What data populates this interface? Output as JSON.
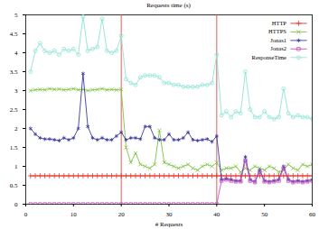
{
  "chart_data": {
    "type": "line",
    "title": "Requests time (s)",
    "x_label": "# Requests",
    "x": [
      1,
      2,
      3,
      4,
      5,
      6,
      7,
      8,
      9,
      10,
      11,
      12,
      13,
      14,
      15,
      16,
      17,
      18,
      19,
      20,
      21,
      22,
      23,
      24,
      25,
      26,
      27,
      28,
      29,
      30,
      31,
      32,
      33,
      34,
      35,
      36,
      37,
      38,
      39,
      40,
      41,
      42,
      43,
      44,
      45,
      46,
      47,
      48,
      49,
      50,
      51,
      52,
      53,
      54,
      55,
      56,
      57,
      58,
      59,
      60
    ],
    "series": [
      {
        "name": "HTTP",
        "color": "#e8312a",
        "marker": "plus",
        "values": [
          0.75,
          0.75,
          0.75,
          0.75,
          0.75,
          0.75,
          0.75,
          0.75,
          0.75,
          0.75,
          0.75,
          0.75,
          0.75,
          0.75,
          0.75,
          0.75,
          0.75,
          0.75,
          0.75,
          0.75,
          0.75,
          0.75,
          0.75,
          0.75,
          0.75,
          0.75,
          0.75,
          0.75,
          0.75,
          0.75,
          0.75,
          0.75,
          0.75,
          0.75,
          0.75,
          0.75,
          0.75,
          0.75,
          0.75,
          0.75,
          0.75,
          0.75,
          0.75,
          0.75,
          0.75,
          0.75,
          0.75,
          0.75,
          0.75,
          0.75,
          0.75,
          0.75,
          0.75,
          0.75,
          0.75,
          0.75,
          0.75,
          0.75,
          0.75,
          0.75
        ]
      },
      {
        "name": "HTTPS",
        "color": "#7cc242",
        "marker": "x",
        "values": [
          3.0,
          3.02,
          3.03,
          3.02,
          3.05,
          3.03,
          3.04,
          3.02,
          3.03,
          3.05,
          3.02,
          3.03,
          3.0,
          3.02,
          3.03,
          3.05,
          3.02,
          3.03,
          3.02,
          3.03,
          1.5,
          1.1,
          1.35,
          1.05,
          1.0,
          0.95,
          1.05,
          1.95,
          1.1,
          1.05,
          1.0,
          0.95,
          1.0,
          1.05,
          0.95,
          0.9,
          1.0,
          1.05,
          1.0,
          1.1,
          0.9,
          0.95,
          0.95,
          1.0,
          0.85,
          0.95,
          0.9,
          1.0,
          0.95,
          0.9,
          1.0,
          0.95,
          0.85,
          0.9,
          1.05,
          0.95,
          0.9,
          1.05,
          1.0,
          1.05
        ]
      },
      {
        "name": "Jonas1",
        "color": "#3b3b9e",
        "marker": "asterisk",
        "values": [
          2.0,
          1.85,
          1.75,
          1.72,
          1.72,
          1.7,
          1.68,
          1.75,
          1.7,
          1.75,
          2.0,
          3.45,
          2.05,
          1.75,
          1.7,
          1.75,
          1.7,
          1.7,
          1.8,
          1.9,
          1.7,
          1.75,
          1.75,
          1.72,
          2.05,
          2.05,
          1.75,
          1.7,
          1.7,
          1.85,
          1.7,
          1.7,
          1.75,
          1.9,
          1.7,
          1.68,
          1.7,
          1.72,
          1.65,
          1.8,
          0.65,
          0.68,
          0.65,
          0.62,
          0.62,
          1.25,
          0.65,
          0.6,
          0.9,
          0.62,
          0.6,
          0.62,
          0.65,
          1.0,
          0.65,
          0.6,
          0.62,
          0.6,
          0.62,
          0.65
        ]
      },
      {
        "name": "Jonas2",
        "color": "#c84fc4",
        "marker": "square",
        "values": [
          0,
          0,
          0,
          0,
          0,
          0,
          0,
          0,
          0,
          0,
          0,
          0,
          0,
          0,
          0,
          0,
          0,
          0,
          0,
          0,
          0,
          0,
          0,
          0,
          0,
          0,
          0,
          0,
          0,
          0,
          0,
          0,
          0,
          0,
          0,
          0,
          0,
          0,
          0,
          0,
          0.62,
          0.65,
          0.62,
          0.6,
          0.6,
          1.15,
          0.62,
          0.58,
          0.85,
          0.6,
          0.58,
          0.6,
          0.62,
          0.95,
          0.62,
          0.58,
          0.6,
          0.58,
          0.6,
          0.62
        ]
      },
      {
        "name": "ResponseTime",
        "color": "#8ee3d6",
        "marker": "circle",
        "values": [
          3.5,
          4.05,
          4.25,
          4.05,
          4.0,
          4.05,
          3.95,
          4.1,
          4.05,
          4.1,
          3.95,
          4.95,
          4.05,
          4.1,
          4.15,
          4.9,
          4.05,
          4.0,
          4.05,
          4.45,
          3.3,
          3.2,
          3.15,
          3.35,
          3.4,
          3.4,
          3.4,
          3.35,
          3.2,
          3.2,
          3.15,
          3.15,
          3.1,
          3.1,
          3.1,
          3.1,
          3.15,
          3.15,
          3.2,
          3.95,
          2.35,
          2.45,
          2.3,
          2.45,
          2.4,
          3.5,
          2.5,
          2.3,
          2.3,
          2.45,
          2.3,
          2.25,
          2.3,
          3.05,
          2.4,
          2.3,
          2.35,
          2.3,
          2.3,
          2.25
        ]
      }
    ],
    "vlines": [
      20,
      40
    ],
    "xlim": [
      0,
      60
    ],
    "xticks": [
      0,
      10,
      20,
      30,
      40,
      50,
      60
    ],
    "ylim": [
      0,
      5
    ],
    "yticks": [
      0,
      0.5,
      1,
      1.5,
      2,
      2.5,
      3,
      3.5,
      4,
      4.5,
      5
    ],
    "grid": false,
    "legend": "top-right"
  }
}
